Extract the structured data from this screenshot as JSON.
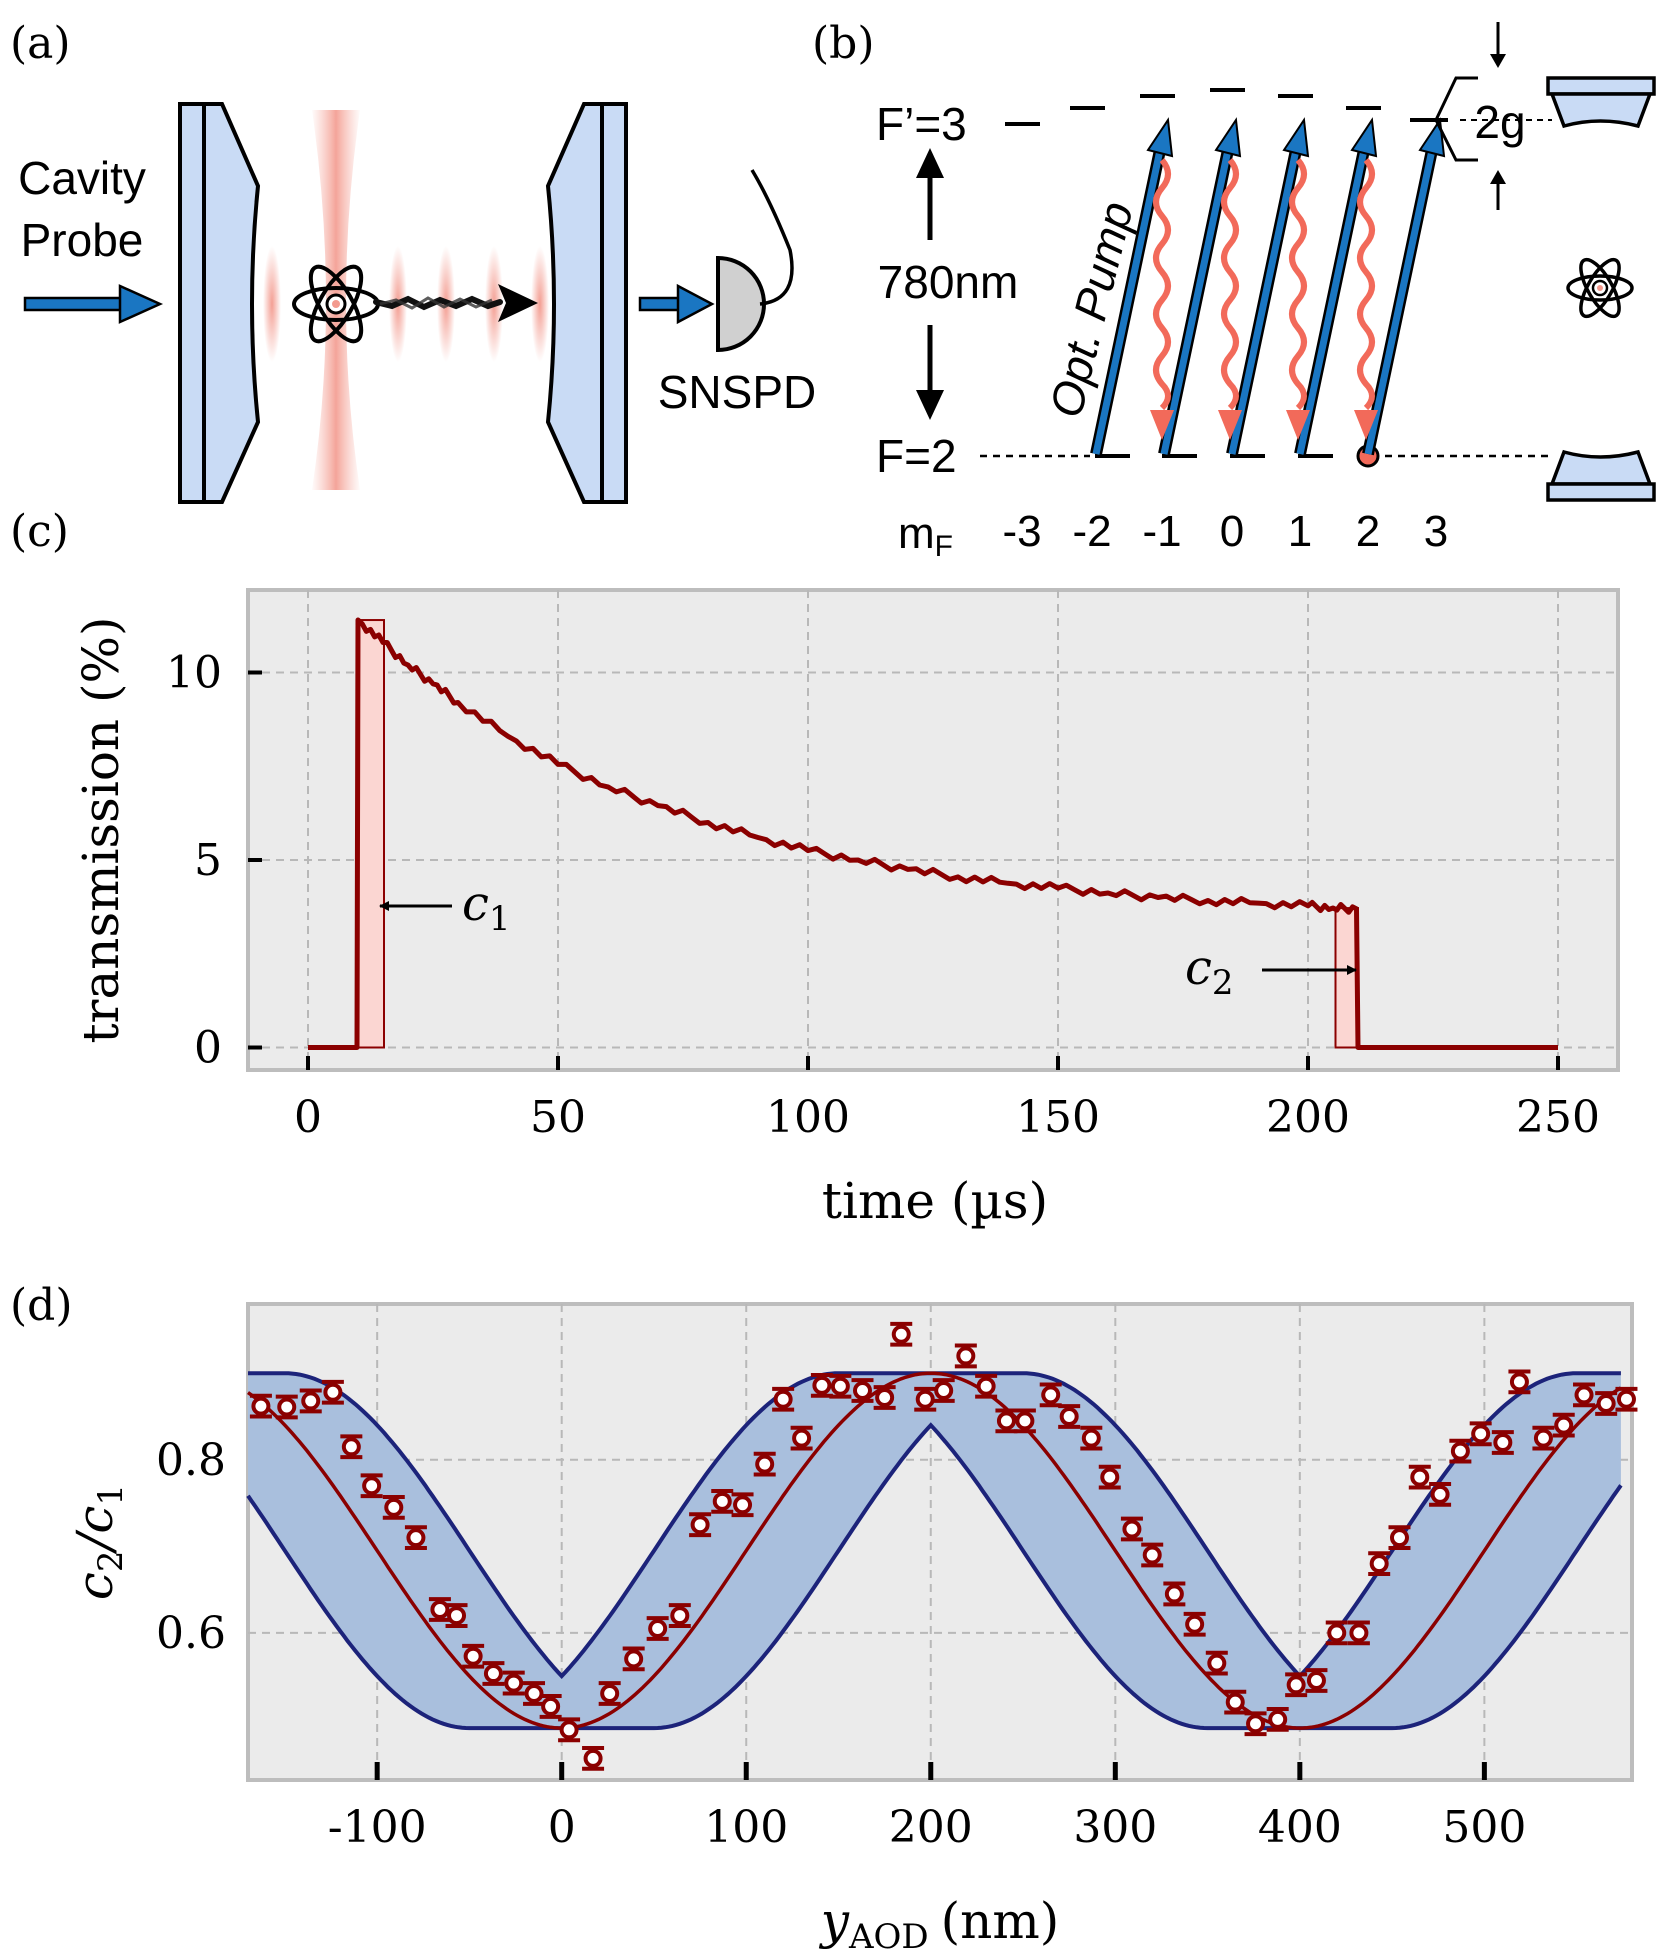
{
  "panel_labels": {
    "a": "(a)",
    "b": "(b)",
    "c": "(c)",
    "d": "(d)"
  },
  "panel_a": {
    "probe_line1": "Cavity",
    "probe_line2": "Probe",
    "detector": "SNSPD"
  },
  "panel_b": {
    "excited_state": "F’=3",
    "ground_state": "F=2",
    "wavelength": "780nm",
    "pump_label": "Opt. Pump",
    "coupling": "2g",
    "mf_label_main": "m",
    "mf_label_sub": "F",
    "mf_values": [
      "-3",
      "-2",
      "-1",
      "0",
      "1",
      "2",
      "3"
    ]
  },
  "colors": {
    "mirror_fill": "#c9dbf5",
    "pump_blue": "#1a76c2",
    "decay_red": "#f26a5a",
    "data_red": "#8b0000",
    "band_fill": "#a9bfdd",
    "band_edge": "#1c237a",
    "plot_bg": "#ebebeb",
    "grid": "#b8b8b8",
    "frame": "#bdbdbd"
  },
  "chart_data": [
    {
      "type": "line",
      "panel": "(c)",
      "xlabel": "time (µs)",
      "ylabel": "transmission (%)",
      "xlim": [
        -12,
        262
      ],
      "ylim": [
        -0.6,
        12.2
      ],
      "xticks": [
        "0",
        "50",
        "100",
        "150",
        "200",
        "250"
      ],
      "xtick_values": [
        0,
        50,
        100,
        150,
        200,
        250
      ],
      "yticks": [
        "0",
        "5",
        "10"
      ],
      "ytick_values": [
        0,
        5,
        10
      ],
      "grid": true,
      "series": [
        {
          "name": "transmission",
          "x": [
            0,
            9.8,
            10,
            15,
            20,
            25,
            30,
            40,
            50,
            60,
            70,
            80,
            90,
            100,
            110,
            120,
            130,
            140,
            150,
            160,
            170,
            180,
            190,
            200,
            205,
            209.7,
            210,
            250
          ],
          "y": [
            0,
            0,
            11.4,
            10.8,
            10.2,
            9.7,
            9.2,
            8.3,
            7.55,
            6.95,
            6.45,
            6.0,
            5.6,
            5.25,
            5.0,
            4.75,
            4.55,
            4.38,
            4.25,
            4.12,
            4.0,
            3.92,
            3.85,
            3.78,
            3.72,
            3.7,
            0,
            0
          ]
        }
      ],
      "windows": [
        {
          "name": "c1",
          "start": 10,
          "end": 15.2,
          "label_main": "c",
          "label_sub": "1"
        },
        {
          "name": "c2",
          "start": 205.5,
          "end": 210,
          "label_main": "c",
          "label_sub": "2"
        }
      ]
    },
    {
      "type": "scatter",
      "panel": "(d)",
      "xlabel_main": "y",
      "xlabel_sub": "AOD",
      "xlabel_unit": "(nm)",
      "ylabel_main_1": "c",
      "ylabel_sub_1": "2",
      "ylabel_main_2": "/c",
      "ylabel_sub_2": "1",
      "xlim": [
        -170,
        580
      ],
      "ylim": [
        0.43,
        0.98
      ],
      "xticks": [
        "-100",
        "0",
        "100",
        "200",
        "300",
        "400",
        "500"
      ],
      "xtick_values": [
        -100,
        0,
        100,
        200,
        300,
        400,
        500
      ],
      "yticks": [
        "0.6",
        "0.8"
      ],
      "ytick_values": [
        0.6,
        0.8
      ],
      "grid": true,
      "model": {
        "period": 400,
        "min": 0.49,
        "max": 0.9,
        "band_half_width": 50,
        "band_start": -170,
        "band_end": 575
      },
      "points": {
        "x": [
          -163,
          -149,
          -136,
          -124,
          -114,
          -103,
          -91,
          -79,
          -66,
          -57,
          -48,
          -37,
          -26,
          -15,
          -6,
          4,
          17,
          26,
          39,
          52,
          64,
          75,
          87,
          98,
          110,
          120,
          130,
          141,
          151,
          163,
          175,
          184,
          197,
          207,
          219,
          230,
          241,
          251,
          265,
          275,
          287,
          297,
          309,
          320,
          332,
          343,
          355,
          365,
          376,
          388,
          398,
          409,
          420,
          432,
          443,
          454,
          465,
          476,
          487,
          498,
          510,
          519,
          532,
          543,
          554,
          566,
          577
        ],
        "y": [
          0.862,
          0.861,
          0.868,
          0.878,
          0.815,
          0.77,
          0.745,
          0.71,
          0.627,
          0.62,
          0.573,
          0.553,
          0.542,
          0.53,
          0.515,
          0.488,
          0.455,
          0.53,
          0.57,
          0.605,
          0.62,
          0.725,
          0.752,
          0.748,
          0.795,
          0.87,
          0.825,
          0.886,
          0.885,
          0.88,
          0.872,
          0.945,
          0.87,
          0.88,
          0.92,
          0.885,
          0.845,
          0.845,
          0.875,
          0.85,
          0.825,
          0.78,
          0.72,
          0.69,
          0.645,
          0.61,
          0.565,
          0.52,
          0.495,
          0.5,
          0.54,
          0.545,
          0.6,
          0.6,
          0.68,
          0.71,
          0.78,
          0.76,
          0.81,
          0.83,
          0.82,
          0.89,
          0.825,
          0.84,
          0.875,
          0.865,
          0.87
        ],
        "yerr": 0.012
      }
    }
  ]
}
